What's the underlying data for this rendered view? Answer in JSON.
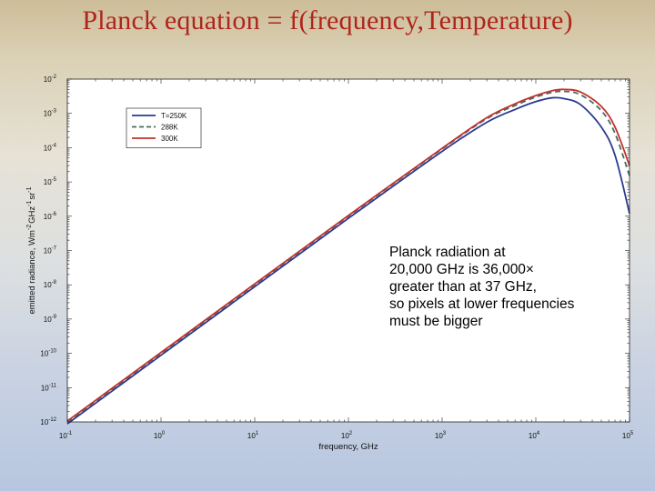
{
  "slide": {
    "title": "Planck equation = f(frequency,Temperature)"
  },
  "annotation": {
    "lines": [
      "Planck radiation at",
      "20,000 GHz is 36,000×",
      "greater than at 37 GHz,",
      "so pixels at lower frequencies",
      "must be bigger"
    ]
  },
  "chart_data": {
    "type": "line",
    "title": "",
    "xlabel": "frequency, GHz",
    "ylabel": "emitted radiance, Wm^-2 GHz^-1 sr^-1",
    "ylabel_parts": [
      "emitted radiance, Wm",
      "-2",
      "GHz",
      "-1",
      "sr",
      "-1"
    ],
    "x_scale": "log",
    "y_scale": "log",
    "xlim": [
      0.1,
      100000
    ],
    "ylim": [
      1e-12,
      0.01
    ],
    "x_ticks": [
      {
        "value": 0.1,
        "base": "10",
        "exp": "-1"
      },
      {
        "value": 1,
        "base": "10",
        "exp": "0"
      },
      {
        "value": 10,
        "base": "10",
        "exp": "1"
      },
      {
        "value": 100,
        "base": "10",
        "exp": "2"
      },
      {
        "value": 1000,
        "base": "10",
        "exp": "3"
      },
      {
        "value": 10000,
        "base": "10",
        "exp": "4"
      },
      {
        "value": 100000,
        "base": "10",
        "exp": "5"
      }
    ],
    "y_ticks": [
      {
        "value": 1e-12,
        "base": "10",
        "exp": "-12"
      },
      {
        "value": 1e-11,
        "base": "10",
        "exp": "-11"
      },
      {
        "value": 1e-10,
        "base": "10",
        "exp": "-10"
      },
      {
        "value": 1e-09,
        "base": "10",
        "exp": "-9"
      },
      {
        "value": 1e-08,
        "base": "10",
        "exp": "-8"
      },
      {
        "value": 1e-07,
        "base": "10",
        "exp": "-7"
      },
      {
        "value": 1e-06,
        "base": "10",
        "exp": "-6"
      },
      {
        "value": 1e-05,
        "base": "10",
        "exp": "-5"
      },
      {
        "value": 0.0001,
        "base": "10",
        "exp": "-4"
      },
      {
        "value": 0.001,
        "base": "10",
        "exp": "-3"
      },
      {
        "value": 0.01,
        "base": "10",
        "exp": "-2"
      }
    ],
    "grid": false,
    "legend_position": "top-left",
    "series": [
      {
        "name": "T=250K",
        "color": "#2b3a8f",
        "dash": "solid",
        "points": [
          [
            0.1,
            8.8e-13
          ],
          [
            1,
            8.8e-11
          ],
          [
            10,
            8.8e-09
          ],
          [
            100,
            8.7e-07
          ],
          [
            1000,
            7.8e-05
          ],
          [
            3000,
            0.00055
          ],
          [
            6000,
            0.0013
          ],
          [
            10000,
            0.0022
          ],
          [
            15000,
            0.00285
          ],
          [
            20000,
            0.0027
          ],
          [
            30000,
            0.0018
          ],
          [
            50000,
            0.0004
          ],
          [
            70000,
            6e-05
          ],
          [
            100000,
            1.2e-06
          ]
        ]
      },
      {
        "name": "288K",
        "color": "#4b6b5e",
        "dash": "dashed",
        "points": [
          [
            0.1,
            1e-12
          ],
          [
            1,
            1e-10
          ],
          [
            10,
            1e-08
          ],
          [
            100,
            1e-06
          ],
          [
            1000,
            9.2e-05
          ],
          [
            3000,
            0.0007
          ],
          [
            6000,
            0.0017
          ],
          [
            10000,
            0.003
          ],
          [
            15000,
            0.0041
          ],
          [
            20000,
            0.0044
          ],
          [
            30000,
            0.0035
          ],
          [
            50000,
            0.0012
          ],
          [
            70000,
            0.00026
          ],
          [
            100000,
            1.5e-05
          ]
        ]
      },
      {
        "name": "300K",
        "color": "#c1322c",
        "dash": "solid",
        "points": [
          [
            0.1,
            1.06e-12
          ],
          [
            1,
            1.06e-10
          ],
          [
            10,
            1.06e-08
          ],
          [
            100,
            1.05e-06
          ],
          [
            1000,
            9.6e-05
          ],
          [
            3000,
            0.00075
          ],
          [
            6000,
            0.0019
          ],
          [
            10000,
            0.0033
          ],
          [
            15000,
            0.0046
          ],
          [
            20000,
            0.005
          ],
          [
            30000,
            0.0042
          ],
          [
            50000,
            0.0016
          ],
          [
            70000,
            0.0004
          ],
          [
            100000,
            3e-05
          ]
        ]
      }
    ]
  }
}
